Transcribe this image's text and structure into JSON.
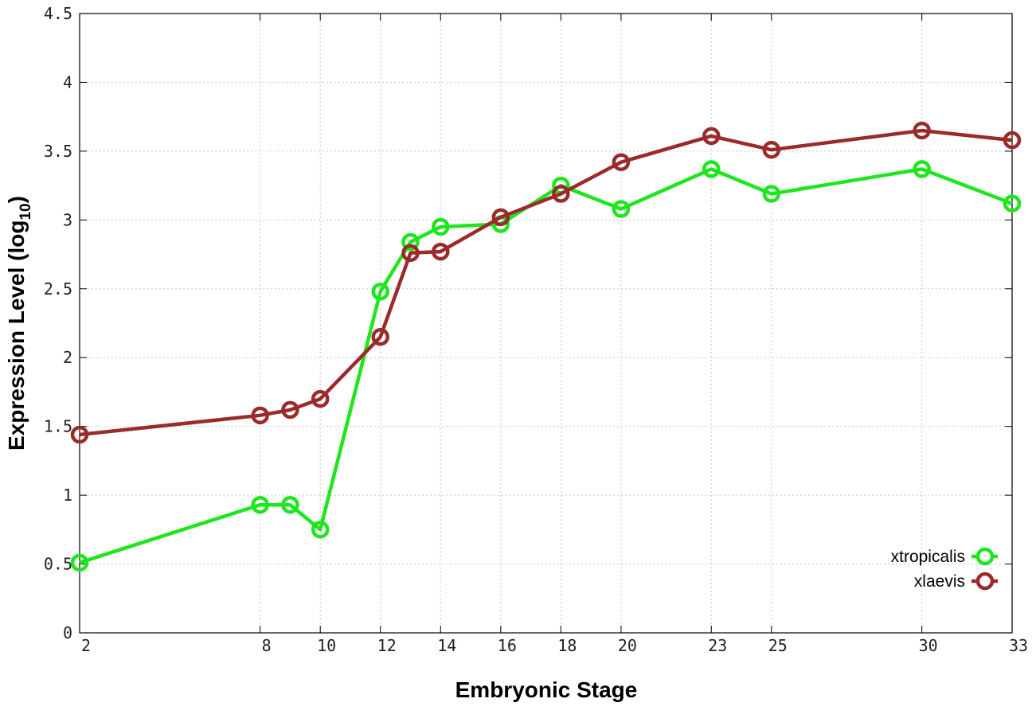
{
  "chart_data": {
    "type": "line",
    "title": "",
    "xlabel": "Embryonic Stage",
    "ylabel_main": "Expression Level (log",
    "ylabel_sub": "10",
    "ylabel_close": ")",
    "x_ticks": [
      "2",
      "8",
      "10",
      "12",
      "14",
      "16",
      "18",
      "20",
      "23",
      "25",
      "30",
      "33"
    ],
    "y_ticks": [
      "0",
      "0.5",
      "1",
      "1.5",
      "2",
      "2.5",
      "3",
      "3.5",
      "4",
      "4.5"
    ],
    "ylim": [
      0,
      4.5
    ],
    "grid": true,
    "legend_position": "bottom-right",
    "series": [
      {
        "name": "xtropicalis",
        "color": "#1ee61e",
        "points": [
          {
            "stage": 2,
            "value": 0.51
          },
          {
            "stage": 8,
            "value": 0.93
          },
          {
            "stage": 9,
            "value": 0.93
          },
          {
            "stage": 10,
            "value": 0.75
          },
          {
            "stage": 12,
            "value": 2.48
          },
          {
            "stage": 13,
            "value": 2.84
          },
          {
            "stage": 14,
            "value": 2.95
          },
          {
            "stage": 16,
            "value": 2.97
          },
          {
            "stage": 18,
            "value": 3.25
          },
          {
            "stage": 20,
            "value": 3.08
          },
          {
            "stage": 23,
            "value": 3.37
          },
          {
            "stage": 25,
            "value": 3.19
          },
          {
            "stage": 30,
            "value": 3.37
          },
          {
            "stage": 33,
            "value": 3.12
          }
        ]
      },
      {
        "name": "xlaevis",
        "color": "#9b2a2a",
        "points": [
          {
            "stage": 2,
            "value": 1.44
          },
          {
            "stage": 8,
            "value": 1.58
          },
          {
            "stage": 9,
            "value": 1.62
          },
          {
            "stage": 10,
            "value": 1.7
          },
          {
            "stage": 12,
            "value": 2.15
          },
          {
            "stage": 13,
            "value": 2.76
          },
          {
            "stage": 14,
            "value": 2.77
          },
          {
            "stage": 16,
            "value": 3.02
          },
          {
            "stage": 18,
            "value": 3.19
          },
          {
            "stage": 20,
            "value": 3.42
          },
          {
            "stage": 23,
            "value": 3.61
          },
          {
            "stage": 25,
            "value": 3.51
          },
          {
            "stage": 30,
            "value": 3.65
          },
          {
            "stage": 33,
            "value": 3.58
          }
        ]
      }
    ]
  }
}
